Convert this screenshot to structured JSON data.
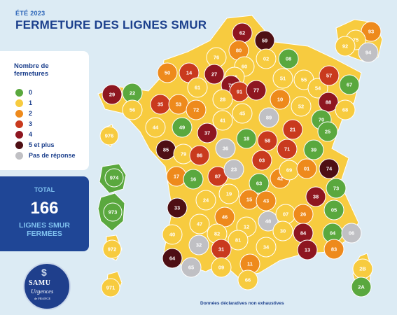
{
  "header": {
    "subtitle": "ÉTÉ 2023",
    "title": "FERMETURE DES LIGNES SMUR"
  },
  "legend": {
    "title": "Nombre de fermetures",
    "items": [
      {
        "label": "0",
        "color": "#5aa83e"
      },
      {
        "label": "1",
        "color": "#f7cb3f"
      },
      {
        "label": "2",
        "color": "#ee8a1c"
      },
      {
        "label": "3",
        "color": "#c93a1e"
      },
      {
        "label": "4",
        "color": "#8e1620"
      },
      {
        "label": "5 et plus",
        "color": "#4e0f14"
      },
      {
        "label": "Pas de réponse",
        "color": "#c0c0c4"
      }
    ]
  },
  "total": {
    "label": "TOTAL",
    "value": "166",
    "text_line1": "LIGNES SMUR",
    "text_line2": "FERMÉES"
  },
  "logo": {
    "line1": "SAMU",
    "line2": "Urgences",
    "line3": "de FRANCE",
    "symbol": "$"
  },
  "footnote": "Données déclaratives non exhaustives",
  "departments": [
    {
      "code": "59",
      "category": "5 et plus"
    },
    {
      "code": "62",
      "category": "4"
    },
    {
      "code": "80",
      "category": "2"
    },
    {
      "code": "76",
      "category": "1"
    },
    {
      "code": "02",
      "category": "1"
    },
    {
      "code": "08",
      "category": "0"
    },
    {
      "code": "60",
      "category": "1"
    },
    {
      "code": "50",
      "category": "2"
    },
    {
      "code": "14",
      "category": "3"
    },
    {
      "code": "27",
      "category": "4"
    },
    {
      "code": "95",
      "category": "1"
    },
    {
      "code": "78",
      "category": "4"
    },
    {
      "code": "91",
      "category": "3"
    },
    {
      "code": "77",
      "category": "4"
    },
    {
      "code": "51",
      "category": "1"
    },
    {
      "code": "55",
      "category": "1"
    },
    {
      "code": "54",
      "category": "1"
    },
    {
      "code": "57",
      "category": "3"
    },
    {
      "code": "67",
      "category": "0"
    },
    {
      "code": "88",
      "category": "4"
    },
    {
      "code": "68",
      "category": "1"
    },
    {
      "code": "29",
      "category": "4"
    },
    {
      "code": "22",
      "category": "0"
    },
    {
      "code": "56",
      "category": "1"
    },
    {
      "code": "35",
      "category": "3"
    },
    {
      "code": "53",
      "category": "2"
    },
    {
      "code": "61",
      "category": "1"
    },
    {
      "code": "72",
      "category": "2"
    },
    {
      "code": "28",
      "category": "1"
    },
    {
      "code": "10",
      "category": "2"
    },
    {
      "code": "52",
      "category": "1"
    },
    {
      "code": "44",
      "category": "1"
    },
    {
      "code": "49",
      "category": "0"
    },
    {
      "code": "37",
      "category": "4"
    },
    {
      "code": "41",
      "category": "1"
    },
    {
      "code": "45",
      "category": "1"
    },
    {
      "code": "89",
      "category": "Pas de réponse"
    },
    {
      "code": "21",
      "category": "3"
    },
    {
      "code": "70",
      "category": "0"
    },
    {
      "code": "25",
      "category": "0"
    },
    {
      "code": "90",
      "category": "0"
    },
    {
      "code": "39",
      "category": "0"
    },
    {
      "code": "85",
      "category": "5 et plus"
    },
    {
      "code": "79",
      "category": "1"
    },
    {
      "code": "86",
      "category": "3"
    },
    {
      "code": "36",
      "category": "Pas de réponse"
    },
    {
      "code": "18",
      "category": "0"
    },
    {
      "code": "58",
      "category": "3"
    },
    {
      "code": "71",
      "category": "3"
    },
    {
      "code": "17",
      "category": "2"
    },
    {
      "code": "16",
      "category": "0"
    },
    {
      "code": "87",
      "category": "3"
    },
    {
      "code": "23",
      "category": "Pas de réponse"
    },
    {
      "code": "03",
      "category": "3"
    },
    {
      "code": "63",
      "category": "0"
    },
    {
      "code": "42",
      "category": "2"
    },
    {
      "code": "69",
      "category": "1"
    },
    {
      "code": "01",
      "category": "2"
    },
    {
      "code": "74",
      "category": "5 et plus"
    },
    {
      "code": "73",
      "category": "0"
    },
    {
      "code": "38",
      "category": "4"
    },
    {
      "code": "33",
      "category": "5 et plus"
    },
    {
      "code": "24",
      "category": "1"
    },
    {
      "code": "19",
      "category": "1"
    },
    {
      "code": "15",
      "category": "2"
    },
    {
      "code": "43",
      "category": "2"
    },
    {
      "code": "46",
      "category": "2"
    },
    {
      "code": "48",
      "category": "Pas de réponse"
    },
    {
      "code": "07",
      "category": "1"
    },
    {
      "code": "26",
      "category": "2"
    },
    {
      "code": "05",
      "category": "0"
    },
    {
      "code": "04",
      "category": "0"
    },
    {
      "code": "06",
      "category": "Pas de réponse"
    },
    {
      "code": "40",
      "category": "1"
    },
    {
      "code": "47",
      "category": "1"
    },
    {
      "code": "82",
      "category": "1"
    },
    {
      "code": "12",
      "category": "1"
    },
    {
      "code": "81",
      "category": "1"
    },
    {
      "code": "30",
      "category": "1"
    },
    {
      "code": "84",
      "category": "4"
    },
    {
      "code": "13",
      "category": "4"
    },
    {
      "code": "83",
      "category": "2"
    },
    {
      "code": "64",
      "category": "5 et plus"
    },
    {
      "code": "32",
      "category": "Pas de réponse"
    },
    {
      "code": "31",
      "category": "3"
    },
    {
      "code": "65",
      "category": "Pas de réponse"
    },
    {
      "code": "09",
      "category": "1"
    },
    {
      "code": "11",
      "category": "2"
    },
    {
      "code": "34",
      "category": "1"
    },
    {
      "code": "66",
      "category": "1"
    },
    {
      "code": "2B",
      "category": "1"
    },
    {
      "code": "2A",
      "category": "0"
    },
    {
      "code": "93",
      "category": "2"
    },
    {
      "code": "75",
      "category": "1"
    },
    {
      "code": "92",
      "category": "1"
    },
    {
      "code": "94",
      "category": "Pas de réponse"
    },
    {
      "code": "974",
      "category": "0"
    },
    {
      "code": "973",
      "category": "0"
    },
    {
      "code": "976",
      "category": "1"
    },
    {
      "code": "972",
      "category": "1"
    },
    {
      "code": "971",
      "category": "1"
    }
  ]
}
